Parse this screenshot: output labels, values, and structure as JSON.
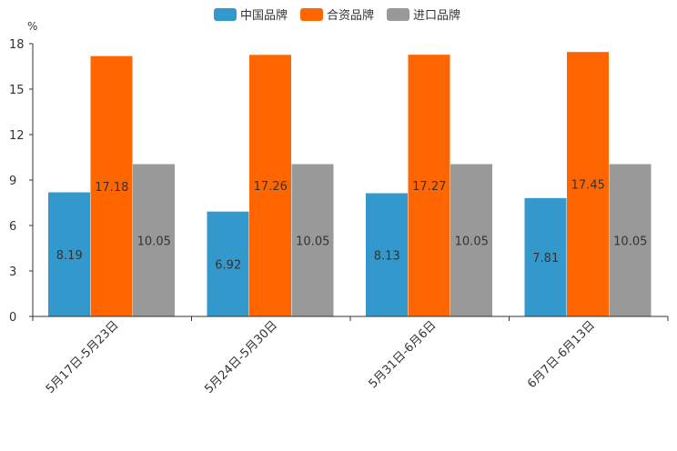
{
  "chart_data": {
    "type": "bar",
    "ylabel": "%",
    "ylim": [
      0,
      18
    ],
    "yticks": [
      0,
      3,
      6,
      9,
      12,
      15,
      18
    ],
    "categories": [
      "5月17日-5月23日",
      "5月24日-5月30日",
      "5月31日-6月6日",
      "6月7日-6月13日"
    ],
    "series": [
      {
        "name": "中国品牌",
        "color": "#3399cc",
        "values": [
          8.19,
          6.92,
          8.13,
          7.81
        ],
        "labels": [
          "8.19",
          "6.92",
          "8.13",
          "7.81"
        ]
      },
      {
        "name": "合资品牌",
        "color": "#ff6600",
        "values": [
          17.18,
          17.26,
          17.27,
          17.45
        ],
        "labels": [
          "17.18",
          "17.26",
          "17.27",
          "17.45"
        ]
      },
      {
        "name": "进口品牌",
        "color": "#999999",
        "values": [
          10.05,
          10.05,
          10.05,
          10.05
        ],
        "labels": [
          "10.05",
          "10.05",
          "10.05",
          "10.05"
        ]
      }
    ],
    "legend_position": "top-center",
    "grid": false
  }
}
